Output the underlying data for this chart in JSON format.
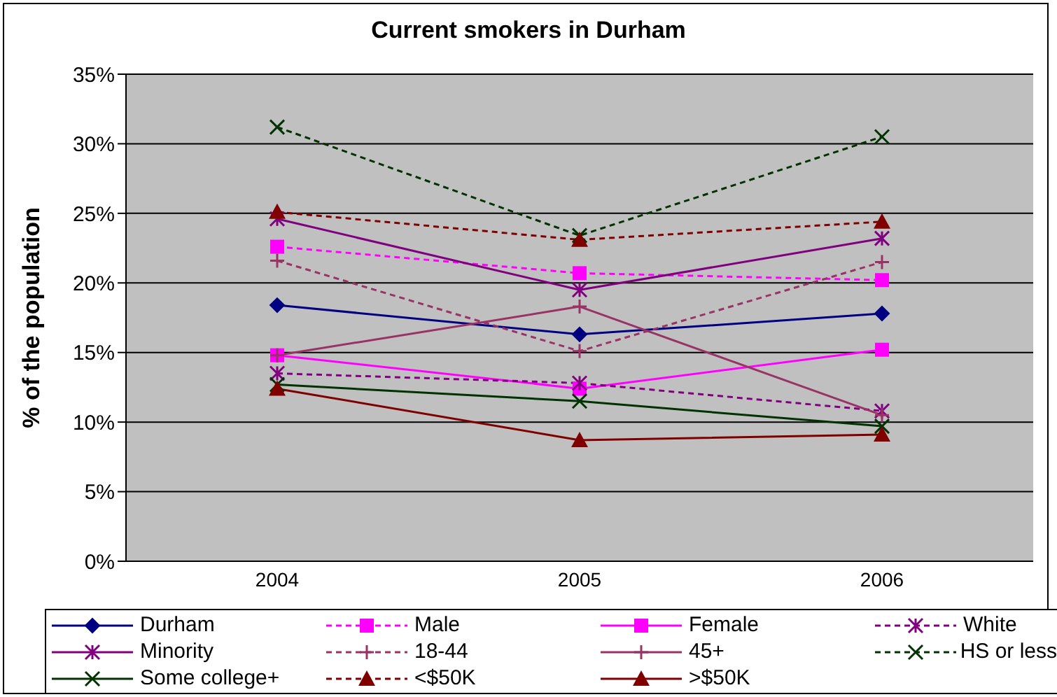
{
  "chart_data": {
    "type": "line",
    "title": "Current smokers in Durham",
    "ylabel": "% of the population",
    "categories": [
      "2004",
      "2005",
      "2006"
    ],
    "ylim": [
      0,
      35
    ],
    "yticks": [
      {
        "value": 0,
        "label": "0%"
      },
      {
        "value": 5,
        "label": "5%"
      },
      {
        "value": 10,
        "label": "10%"
      },
      {
        "value": 15,
        "label": "15%"
      },
      {
        "value": 20,
        "label": "20%"
      },
      {
        "value": 25,
        "label": "25%"
      },
      {
        "value": 30,
        "label": "30%"
      },
      {
        "value": 35,
        "label": "35%"
      }
    ],
    "grid": "y",
    "legend": "bottom",
    "series": [
      {
        "name": "Durham",
        "color": "#000080",
        "marker": "diamond",
        "line_style": "solid",
        "values": [
          18.4,
          16.3,
          17.8
        ]
      },
      {
        "name": "Male",
        "color": "#ff00ff",
        "marker": "square",
        "line_style": "dashed",
        "values": [
          22.6,
          20.7,
          20.2
        ]
      },
      {
        "name": "Female",
        "color": "#ff00ff",
        "marker": "square",
        "line_style": "solid",
        "values": [
          14.8,
          12.4,
          15.2
        ]
      },
      {
        "name": "White",
        "color": "#800080",
        "marker": "cross",
        "line_style": "dashed",
        "values": [
          13.5,
          12.8,
          10.8
        ]
      },
      {
        "name": "Minority",
        "color": "#800080",
        "marker": "cross",
        "line_style": "solid",
        "values": [
          24.6,
          19.5,
          23.2
        ]
      },
      {
        "name": "18-44",
        "color": "#993366",
        "marker": "plus",
        "line_style": "dashed",
        "values": [
          21.6,
          15.1,
          21.5
        ]
      },
      {
        "name": "45+",
        "color": "#993366",
        "marker": "plus",
        "line_style": "solid",
        "values": [
          14.8,
          18.3,
          10.5
        ]
      },
      {
        "name": "HS or less",
        "color": "#003300",
        "marker": "x",
        "line_style": "dashed",
        "values": [
          31.2,
          23.4,
          30.5
        ]
      },
      {
        "name": "Some college+",
        "color": "#003300",
        "marker": "x",
        "line_style": "solid",
        "values": [
          12.7,
          11.5,
          9.7
        ]
      },
      {
        "name": "<$50K",
        "color": "#800000",
        "marker": "triangle",
        "line_style": "dashed",
        "values": [
          25.1,
          23.1,
          24.4
        ]
      },
      {
        "name": ">$50K",
        "color": "#800000",
        "marker": "triangle",
        "line_style": "solid",
        "values": [
          12.4,
          8.7,
          9.1
        ]
      }
    ]
  }
}
